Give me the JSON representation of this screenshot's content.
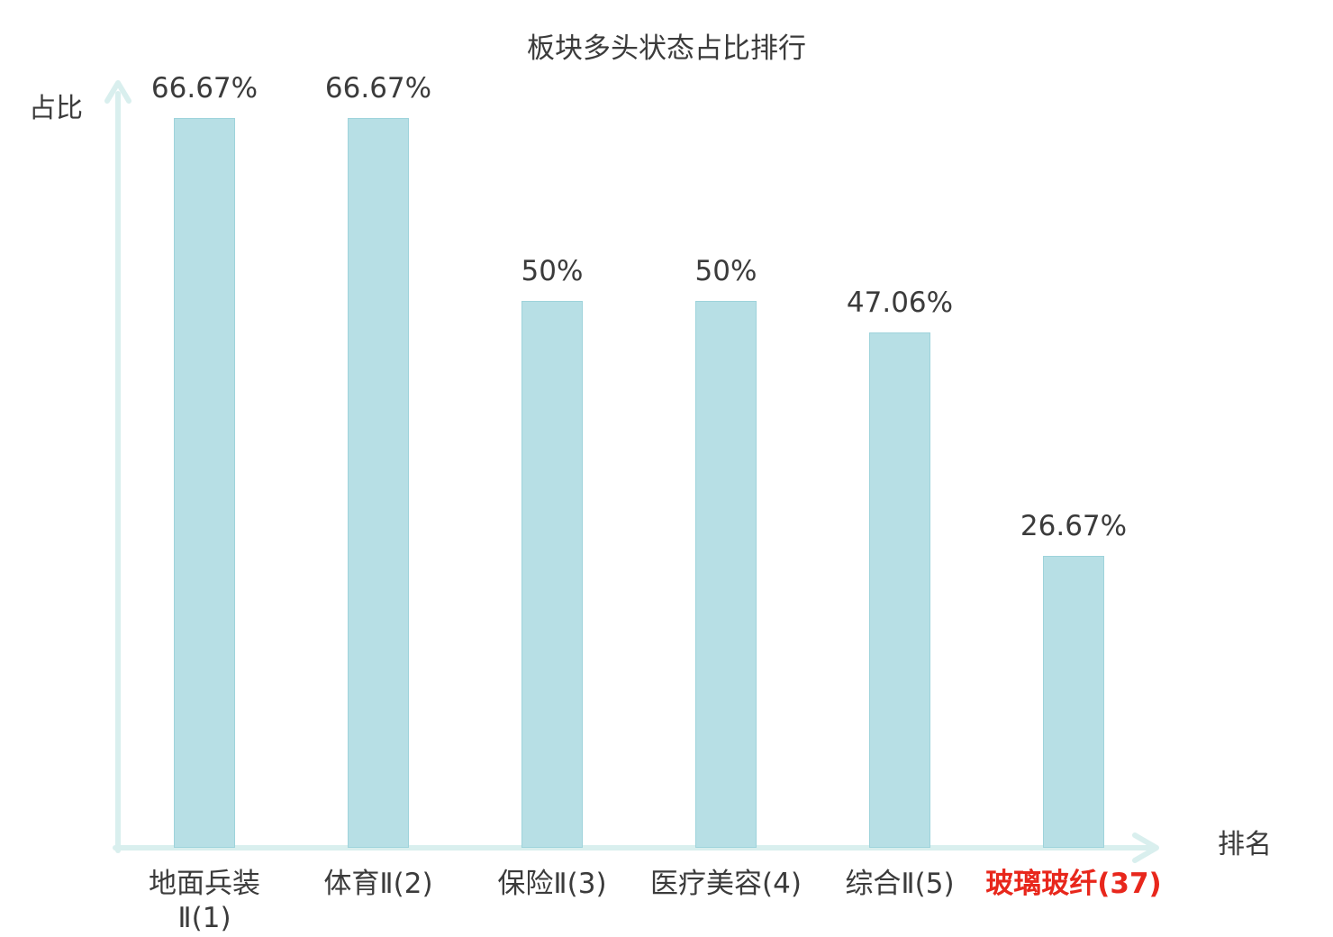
{
  "chart_data": {
    "type": "bar",
    "title": "板块多头状态占比排行",
    "xlabel": "排名",
    "ylabel": "占比",
    "categories": [
      "地面兵装\nⅡ(1)",
      "体育Ⅱ(2)",
      "保险Ⅱ(3)",
      "医疗美容(4)",
      "综合Ⅱ(5)",
      "玻璃玻纤(37)"
    ],
    "values": [
      66.67,
      66.67,
      50,
      50,
      47.06,
      26.67
    ],
    "value_labels": [
      "66.67%",
      "66.67%",
      "50%",
      "50%",
      "47.06%",
      "26.67%"
    ],
    "highlight_index": 5,
    "ylim": [
      0,
      70
    ],
    "grid": false,
    "legend": "none",
    "colors": {
      "bar_fill": "#b7dfe5",
      "bar_border": "#9ed3db",
      "axis": "#d9efee",
      "text": "#3b3b3b",
      "highlight_text": "#e8271c"
    }
  }
}
